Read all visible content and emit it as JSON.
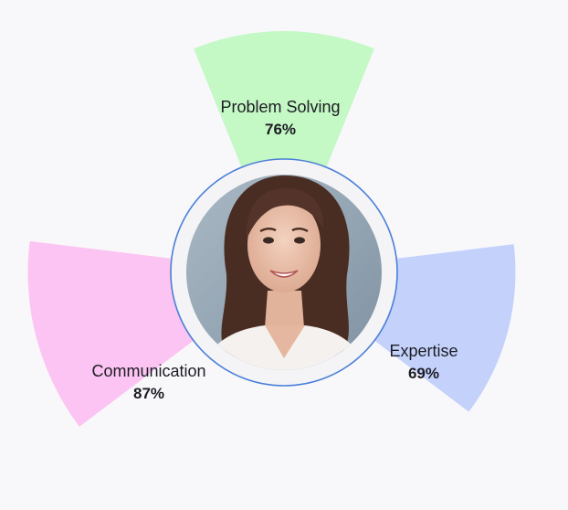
{
  "colors": {
    "background": "#f8f8fb",
    "ring_border": "#4a7fd8",
    "ring_fill": "#f4f4f6"
  },
  "avatar": {
    "icon": "person-portrait-icon",
    "description_name": "avatar-photo"
  },
  "skills": [
    {
      "name": "Problem Solving",
      "value": "76%",
      "percent": 76,
      "color": "#c4f8c4"
    },
    {
      "name": "Expertise",
      "value": "69%",
      "percent": 69,
      "color": "#c4d2fb"
    },
    {
      "name": "Communication",
      "value": "87%",
      "percent": 87,
      "color": "#fcc4f2"
    }
  ]
}
